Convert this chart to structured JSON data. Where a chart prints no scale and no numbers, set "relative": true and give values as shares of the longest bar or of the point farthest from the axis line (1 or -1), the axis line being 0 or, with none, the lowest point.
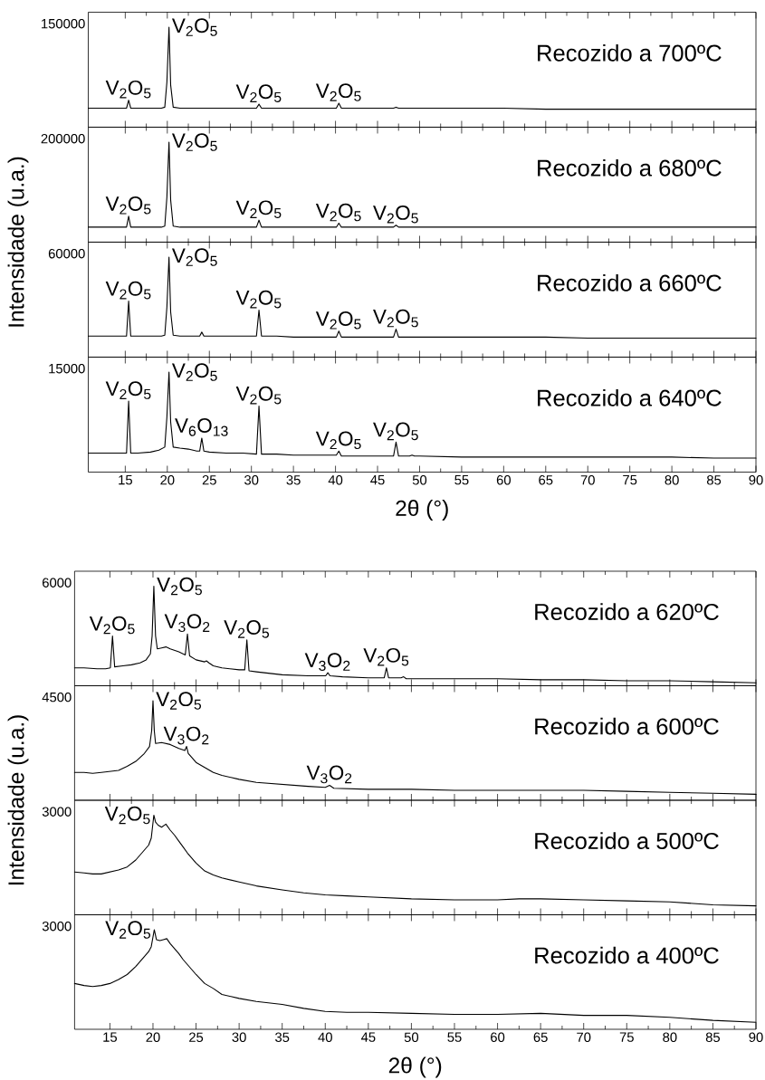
{
  "chart_data": [
    {
      "type": "line",
      "title": "Recozido a 700ºC",
      "ylabel": "Intensidade (u.a.)",
      "color": "#000000",
      "relative": true,
      "xlim": [
        10.6,
        90
      ],
      "xticks": [
        15,
        20,
        25,
        30,
        35,
        40,
        45,
        50,
        55,
        60,
        65,
        70,
        75,
        80,
        85,
        90
      ],
      "tick_labels": false,
      "x": [
        10.6,
        12,
        13.5,
        14.9,
        15.15,
        15.4,
        15.65,
        16.5,
        18,
        19.3,
        19.7,
        19.95,
        20.2,
        20.4,
        20.7,
        21.5,
        23,
        25,
        27,
        29,
        30.6,
        30.9,
        31.2,
        33,
        35,
        37,
        39,
        40.1,
        40.4,
        40.7,
        42,
        44,
        46.9,
        47.2,
        47.5,
        50,
        55,
        60,
        65,
        70,
        75,
        80,
        85,
        90
      ],
      "values": [
        0.19,
        0.19,
        0.19,
        0.19,
        0.19,
        0.27,
        0.19,
        0.19,
        0.19,
        0.19,
        0.2,
        0.45,
        1,
        0.42,
        0.2,
        0.19,
        0.19,
        0.19,
        0.19,
        0.19,
        0.19,
        0.23,
        0.19,
        0.19,
        0.19,
        0.19,
        0.19,
        0.19,
        0.24,
        0.19,
        0.19,
        0.19,
        0.19,
        0.2,
        0.19,
        0.19,
        0.19,
        0.19,
        0.18,
        0.18,
        0.18,
        0.18,
        0.18,
        0.18
      ],
      "annotations": [
        "150000",
        {
          "text": "V$_{2}$O$_{5}$",
          "x": 15.4,
          "y": 0.27
        },
        {
          "text": "V$_{2}$O$_{5}$",
          "x": 20.2,
          "y": 1
        },
        {
          "text": "V$_{2}$O$_{5}$",
          "x": 30.9,
          "y": 0.23
        },
        {
          "text": "V$_{2}$O$_{5}$",
          "x": 40.4,
          "y": 0.24
        }
      ]
    },
    {
      "type": "line",
      "title": "Recozido a 680ºC",
      "color": "#000000",
      "relative": true,
      "xlim": [
        10.6,
        90
      ],
      "xticks": [
        15,
        20,
        25,
        30,
        35,
        40,
        45,
        50,
        55,
        60,
        65,
        70,
        75,
        80,
        85,
        90
      ],
      "tick_labels": false,
      "x": [
        10.6,
        12,
        13.5,
        14.9,
        15.15,
        15.4,
        15.65,
        16.5,
        18,
        19.3,
        19.7,
        19.95,
        20.2,
        20.4,
        20.7,
        21.5,
        23,
        25,
        27,
        29,
        30.6,
        30.9,
        31.2,
        33,
        35,
        37,
        39,
        40.1,
        40.4,
        40.7,
        42,
        44,
        46.9,
        47.2,
        47.5,
        50,
        55,
        60,
        65,
        70,
        75,
        80,
        85,
        90
      ],
      "values": [
        0.15,
        0.15,
        0.15,
        0.15,
        0.15,
        0.26,
        0.15,
        0.15,
        0.15,
        0.15,
        0.16,
        0.45,
        1,
        0.42,
        0.16,
        0.15,
        0.15,
        0.15,
        0.15,
        0.15,
        0.15,
        0.22,
        0.15,
        0.15,
        0.15,
        0.15,
        0.15,
        0.15,
        0.19,
        0.15,
        0.15,
        0.15,
        0.15,
        0.17,
        0.15,
        0.15,
        0.15,
        0.15,
        0.15,
        0.15,
        0.15,
        0.15,
        0.15,
        0.15
      ],
      "annotations": [
        "200000",
        {
          "text": "V$_{2}$O$_{5}$",
          "x": 15.4,
          "y": 0.26
        },
        {
          "text": "V$_{2}$O$_{5}$",
          "x": 20.2,
          "y": 1
        },
        {
          "text": "V$_{2}$O$_{5}$",
          "x": 30.9,
          "y": 0.22
        },
        {
          "text": "V$_{2}$O$_{5}$",
          "x": 40.4,
          "y": 0.19
        },
        {
          "text": "V$_{2}$O$_{5}$",
          "x": 47.2,
          "y": 0.17
        }
      ]
    },
    {
      "type": "line",
      "title": "Recozido a 660ºC",
      "color": "#000000",
      "relative": true,
      "xlim": [
        10.6,
        90
      ],
      "xticks": [
        15,
        20,
        25,
        30,
        35,
        40,
        45,
        50,
        55,
        60,
        65,
        70,
        75,
        80,
        85,
        90
      ],
      "tick_labels": false,
      "x": [
        10.6,
        12,
        13.5,
        14.9,
        15.15,
        15.4,
        15.65,
        16.5,
        18,
        19.3,
        19.7,
        19.95,
        20.2,
        20.4,
        20.7,
        21.5,
        23,
        23.85,
        24.1,
        24.35,
        25,
        27,
        29,
        30.6,
        30.9,
        31.2,
        33,
        35,
        37,
        39,
        40.1,
        40.4,
        40.7,
        42,
        44,
        46.9,
        47.2,
        47.5,
        50,
        55,
        60,
        65,
        70,
        75,
        80,
        85,
        90
      ],
      "values": [
        0.21,
        0.21,
        0.21,
        0.21,
        0.21,
        0.56,
        0.21,
        0.21,
        0.21,
        0.21,
        0.22,
        0.5,
        1,
        0.45,
        0.22,
        0.21,
        0.21,
        0.21,
        0.25,
        0.21,
        0.21,
        0.21,
        0.21,
        0.21,
        0.47,
        0.21,
        0.21,
        0.2,
        0.2,
        0.2,
        0.2,
        0.26,
        0.2,
        0.2,
        0.2,
        0.2,
        0.28,
        0.2,
        0.2,
        0.2,
        0.2,
        0.2,
        0.19,
        0.19,
        0.19,
        0.19,
        0.19
      ],
      "annotations": [
        "60000",
        {
          "text": "V$_{2}$O$_{5}$",
          "x": 15.4,
          "y": 0.56
        },
        {
          "text": "V$_{2}$O$_{5}$",
          "x": 20.2,
          "y": 1
        },
        {
          "text": "V$_{2}$O$_{5}$",
          "x": 30.9,
          "y": 0.47
        },
        {
          "text": "V$_{2}$O$_{5}$",
          "x": 40.4,
          "y": 0.26
        },
        {
          "text": "V$_{2}$O$_{5}$",
          "x": 47.2,
          "y": 0.28
        }
      ]
    },
    {
      "type": "line",
      "title": "Recozido a 640ºC",
      "xlabel": "2θ (°)",
      "color": "#000000",
      "relative": true,
      "xlim": [
        10.6,
        90
      ],
      "xticks": [
        15,
        20,
        25,
        30,
        35,
        40,
        45,
        50,
        55,
        60,
        65,
        70,
        75,
        80,
        85,
        90
      ],
      "tick_labels": "x",
      "x": [
        10.6,
        12,
        13.5,
        14.9,
        15.15,
        15.4,
        15.65,
        16.5,
        18,
        19,
        19.7,
        19.95,
        20.2,
        20.4,
        20.7,
        21.5,
        22.5,
        23.5,
        23.85,
        24.1,
        24.35,
        25,
        27,
        29,
        30.6,
        30.9,
        31.2,
        33,
        35,
        37,
        39,
        40.1,
        40.4,
        40.7,
        42,
        44,
        46.9,
        47.2,
        47.5,
        48.8,
        49.1,
        49.4,
        50,
        55,
        60,
        65,
        70,
        75,
        80,
        85,
        90
      ],
      "values": [
        0.19,
        0.19,
        0.19,
        0.19,
        0.19,
        0.71,
        0.19,
        0.19,
        0.2,
        0.22,
        0.25,
        0.55,
        1,
        0.5,
        0.25,
        0.24,
        0.23,
        0.21,
        0.21,
        0.34,
        0.21,
        0.2,
        0.19,
        0.19,
        0.18,
        0.66,
        0.18,
        0.18,
        0.17,
        0.17,
        0.17,
        0.17,
        0.21,
        0.16,
        0.16,
        0.16,
        0.16,
        0.3,
        0.16,
        0.16,
        0.17,
        0.16,
        0.16,
        0.15,
        0.15,
        0.15,
        0.15,
        0.15,
        0.15,
        0.14,
        0.14
      ],
      "annotations": [
        "15000",
        {
          "text": "V$_{2}$O$_{5}$",
          "x": 15.4,
          "y": 0.71
        },
        {
          "text": "V$_{2}$O$_{5}$",
          "x": 20.2,
          "y": 1
        },
        {
          "text": "V$_{6}$O$_{13}$",
          "x": 24.1,
          "y": 0.34
        },
        {
          "text": "V$_{2}$O$_{5}$",
          "x": 30.9,
          "y": 0.66
        },
        {
          "text": "V$_{2}$O$_{5}$",
          "x": 40.4,
          "y": 0.21
        },
        {
          "text": "V$_{2}$O$_{5}$",
          "x": 47.2,
          "y": 0.3
        }
      ]
    },
    {
      "type": "line",
      "title": "Recozido a 620ºC",
      "ylabel": "Intensidade (u.a.)",
      "color": "#000000",
      "relative": true,
      "xlim": [
        10.9,
        90
      ],
      "xticks": [
        15,
        20,
        25,
        30,
        35,
        40,
        45,
        50,
        55,
        60,
        65,
        70,
        75,
        80,
        85,
        90
      ],
      "tick_labels": false,
      "x": [
        10.9,
        12,
        13.5,
        14.5,
        15.05,
        15.3,
        15.55,
        16.5,
        17.5,
        18.5,
        19.2,
        19.7,
        19.9,
        20.1,
        20.3,
        20.5,
        21,
        21.5,
        22,
        23,
        23.75,
        24,
        24.25,
        25,
        26,
        26.2,
        26.5,
        27,
        28,
        30,
        30.65,
        30.9,
        31.15,
        32,
        35,
        38,
        40.05,
        40.3,
        40.55,
        42,
        45,
        46.85,
        47.1,
        47.35,
        48.8,
        49.1,
        49.4,
        50,
        55,
        60,
        65,
        70,
        75,
        80,
        85,
        90
      ],
      "values": [
        0.18,
        0.18,
        0.17,
        0.17,
        0.18,
        0.5,
        0.19,
        0.2,
        0.21,
        0.23,
        0.26,
        0.32,
        0.5,
        1,
        0.5,
        0.37,
        0.38,
        0.39,
        0.37,
        0.34,
        0.31,
        0.52,
        0.3,
        0.26,
        0.24,
        0.25,
        0.23,
        0.2,
        0.18,
        0.16,
        0.16,
        0.46,
        0.15,
        0.14,
        0.11,
        0.1,
        0.1,
        0.13,
        0.1,
        0.09,
        0.08,
        0.08,
        0.18,
        0.08,
        0.08,
        0.09,
        0.07,
        0.07,
        0.07,
        0.07,
        0.06,
        0.06,
        0.05,
        0.05,
        0.04,
        0.03
      ],
      "annotations": [
        "6000",
        {
          "text": "V$_{2}$O$_{5}$",
          "x": 15.3,
          "y": 0.5
        },
        {
          "text": "V$_{2}$O$_{5}$",
          "x": 20.1,
          "y": 1
        },
        {
          "text": "V$_{3}$O$_{2}$",
          "x": 24,
          "y": 0.52
        },
        {
          "text": "V$_{2}$O$_{5}$",
          "x": 30.9,
          "y": 0.46
        },
        {
          "text": "V$_{3}$O$_{2}$",
          "x": 40.3,
          "y": 0.13
        },
        {
          "text": "V$_{2}$O$_{5}$",
          "x": 47.1,
          "y": 0.18
        }
      ]
    },
    {
      "type": "line",
      "title": "Recozido a 600ºC",
      "color": "#000000",
      "relative": true,
      "xlim": [
        10.9,
        90
      ],
      "xticks": [
        15,
        20,
        25,
        30,
        35,
        40,
        45,
        50,
        55,
        60,
        65,
        70,
        75,
        80,
        85,
        90
      ],
      "tick_labels": false,
      "x": [
        10.9,
        12,
        13,
        14,
        15,
        16,
        17,
        18,
        19,
        19.6,
        19.85,
        20,
        20.15,
        20.3,
        21,
        22,
        23,
        23.7,
        23.9,
        24.1,
        24.5,
        25,
        26,
        27,
        28,
        30,
        32,
        35,
        38,
        40,
        40.5,
        41,
        45,
        50,
        55,
        60,
        65,
        70,
        75,
        80,
        85,
        90
      ],
      "values": [
        0.28,
        0.28,
        0.27,
        0.28,
        0.29,
        0.3,
        0.34,
        0.39,
        0.47,
        0.54,
        0.7,
        1,
        0.7,
        0.57,
        0.58,
        0.56,
        0.52,
        0.5,
        0.54,
        0.47,
        0.43,
        0.38,
        0.33,
        0.28,
        0.25,
        0.21,
        0.18,
        0.16,
        0.14,
        0.13,
        0.15,
        0.12,
        0.11,
        0.11,
        0.1,
        0.1,
        0.1,
        0.1,
        0.09,
        0.08,
        0.07,
        0.06
      ],
      "annotations": [
        "4500",
        {
          "text": "V$_{2}$O$_{5}$",
          "x": 20,
          "y": 1
        },
        {
          "text": "V$_{3}$O$_{2}$",
          "x": 23.9,
          "y": 0.54
        },
        {
          "text": "V$_{3}$O$_{2}$",
          "x": 40.5,
          "y": 0.15
        }
      ]
    },
    {
      "type": "line",
      "title": "Recozido a 500ºC",
      "color": "#000000",
      "relative": true,
      "xlim": [
        10.9,
        90
      ],
      "xticks": [
        15,
        20,
        25,
        30,
        35,
        40,
        45,
        50,
        55,
        60,
        65,
        70,
        75,
        80,
        85,
        90
      ],
      "tick_labels": false,
      "x": [
        10.9,
        12,
        13,
        14,
        15,
        16,
        17,
        18,
        19,
        19.5,
        19.8,
        20.1,
        20.3,
        20.6,
        21,
        21.5,
        22,
        22.5,
        23,
        23.5,
        24,
        24.5,
        25,
        26,
        27,
        28,
        30,
        32,
        35,
        37.5,
        40,
        42.5,
        45,
        50,
        55,
        60,
        62.5,
        65,
        70,
        75,
        80,
        85,
        90
      ],
      "values": [
        0.43,
        0.42,
        0.41,
        0.41,
        0.43,
        0.45,
        0.48,
        0.55,
        0.65,
        0.7,
        0.77,
        1,
        0.93,
        0.9,
        0.88,
        0.91,
        0.85,
        0.8,
        0.74,
        0.68,
        0.62,
        0.57,
        0.52,
        0.44,
        0.4,
        0.37,
        0.33,
        0.29,
        0.25,
        0.22,
        0.2,
        0.19,
        0.18,
        0.16,
        0.15,
        0.15,
        0.16,
        0.16,
        0.15,
        0.14,
        0.13,
        0.1,
        0.09
      ],
      "annotations": [
        "3000",
        {
          "text": "V$_{2}$O$_{5}$",
          "x": 20.1,
          "y": 1
        }
      ]
    },
    {
      "type": "line",
      "title": "Recozido a 400ºC",
      "xlabel": "2θ (°)",
      "color": "#000000",
      "relative": true,
      "xlim": [
        10.9,
        90
      ],
      "xticks": [
        15,
        20,
        25,
        30,
        35,
        40,
        45,
        50,
        55,
        60,
        65,
        70,
        75,
        80,
        85,
        90
      ],
      "tick_labels": "x",
      "x": [
        10.9,
        12,
        13,
        14,
        15,
        16,
        17,
        18,
        19,
        19.5,
        19.8,
        20.15,
        20.4,
        20.8,
        21.2,
        21.6,
        22,
        22.5,
        23,
        23.5,
        24,
        24.5,
        25,
        26,
        27,
        28,
        30,
        32,
        35,
        37.5,
        40,
        42.5,
        45,
        50,
        55,
        60,
        65,
        70,
        75,
        80,
        85,
        90
      ],
      "values": [
        0.46,
        0.44,
        0.43,
        0.44,
        0.46,
        0.5,
        0.55,
        0.63,
        0.73,
        0.78,
        0.83,
        1,
        0.9,
        0.89,
        0.9,
        0.91,
        0.86,
        0.81,
        0.76,
        0.7,
        0.65,
        0.6,
        0.55,
        0.46,
        0.41,
        0.35,
        0.31,
        0.28,
        0.25,
        0.21,
        0.18,
        0.17,
        0.17,
        0.16,
        0.15,
        0.15,
        0.16,
        0.14,
        0.14,
        0.12,
        0.09,
        0.07
      ],
      "annotations": [
        "3000",
        {
          "text": "V$_{2}$O$_{5}$",
          "x": 20.15,
          "y": 1
        }
      ]
    }
  ]
}
